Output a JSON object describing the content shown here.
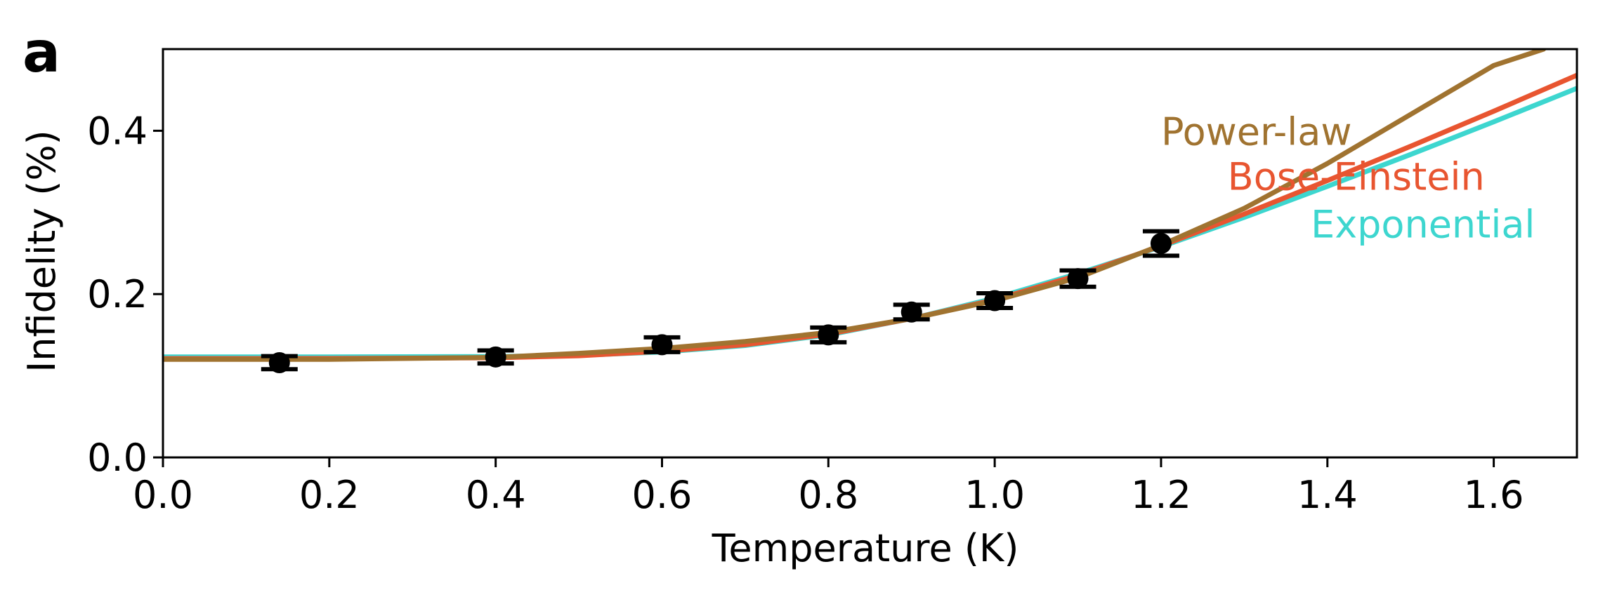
{
  "panel_label": "a",
  "chart_data": {
    "type": "line",
    "title": "",
    "xlabel": "Temperature (K)",
    "ylabel": "Infidelity (%)",
    "xlim": [
      0.0,
      1.7
    ],
    "ylim": [
      0.0,
      0.5
    ],
    "xticks": [
      0.0,
      0.2,
      0.4,
      0.6,
      0.8,
      1.0,
      1.2,
      1.4,
      1.6
    ],
    "xtick_labels": [
      "0.0",
      "0.2",
      "0.4",
      "0.6",
      "0.8",
      "1.0",
      "1.2",
      "1.4",
      "1.6"
    ],
    "yticks": [
      0.0,
      0.2,
      0.4
    ],
    "ytick_labels": [
      "0.0",
      "0.2",
      "0.4"
    ],
    "grid": false,
    "measurements": {
      "x": [
        0.14,
        0.4,
        0.6,
        0.8,
        0.9,
        1.0,
        1.1,
        1.2
      ],
      "y": [
        0.116,
        0.123,
        0.138,
        0.15,
        0.178,
        0.192,
        0.219,
        0.262
      ],
      "yerr": [
        0.008,
        0.008,
        0.009,
        0.009,
        0.009,
        0.009,
        0.01,
        0.015
      ],
      "color": "#000000"
    },
    "series": [
      {
        "name": "Power-law",
        "color": "#a07330",
        "x": [
          0.0,
          0.2,
          0.4,
          0.5,
          0.6,
          0.7,
          0.8,
          0.9,
          1.0,
          1.1,
          1.2,
          1.3,
          1.4,
          1.5,
          1.6,
          1.66
        ],
        "y": [
          0.12,
          0.1201,
          0.1225,
          0.1275,
          0.1335,
          0.142,
          0.153,
          0.17,
          0.192,
          0.22,
          0.26,
          0.305,
          0.36,
          0.42,
          0.48,
          0.5
        ]
      },
      {
        "name": "Bose-Einstein",
        "color": "#e85530",
        "x": [
          0.0,
          0.2,
          0.4,
          0.5,
          0.6,
          0.7,
          0.8,
          0.9,
          1.0,
          1.1,
          1.2,
          1.3,
          1.4,
          1.5,
          1.6,
          1.7
        ],
        "y": [
          0.121,
          0.1211,
          0.122,
          0.1245,
          0.13,
          0.138,
          0.151,
          0.17,
          0.193,
          0.223,
          0.259,
          0.298,
          0.339,
          0.381,
          0.424,
          0.468
        ]
      },
      {
        "name": "Exponential",
        "color": "#3dd6cf",
        "x": [
          0.0,
          0.2,
          0.4,
          0.5,
          0.6,
          0.7,
          0.8,
          0.9,
          1.0,
          1.1,
          1.2,
          1.3,
          1.4,
          1.5,
          1.6,
          1.7
        ],
        "y": [
          0.123,
          0.1231,
          0.1235,
          0.125,
          0.129,
          0.137,
          0.15,
          0.17,
          0.195,
          0.225,
          0.258,
          0.294,
          0.332,
          0.371,
          0.411,
          0.452
        ]
      }
    ],
    "annotations": [
      {
        "text": "Power-law",
        "x": 1.2,
        "y": 0.398,
        "color": "#a07330"
      },
      {
        "text": "Bose-Einstein",
        "x": 1.28,
        "y": 0.343,
        "color": "#e85530"
      },
      {
        "text": "Exponential",
        "x": 1.38,
        "y": 0.285,
        "color": "#3dd6cf"
      }
    ]
  }
}
